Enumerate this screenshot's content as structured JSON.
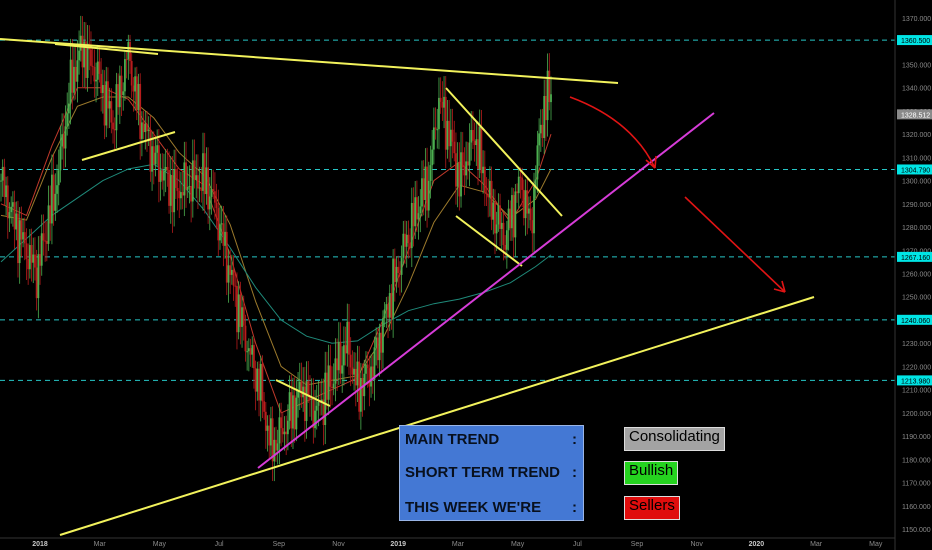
{
  "chart_data": {
    "type": "candlestick",
    "title": "",
    "ylim": [
      1150,
      1375
    ],
    "y_ticks": [
      "1150.000",
      "1160.000",
      "1170.000",
      "1180.000",
      "1190.000",
      "1200.000",
      "1210.000",
      "1220.000",
      "1230.000",
      "1240.000",
      "1250.000",
      "1260.000",
      "1270.000",
      "1280.000",
      "1290.000",
      "1300.000",
      "1310.000",
      "1320.000",
      "1330.000",
      "1340.000",
      "1350.000",
      "1360.000",
      "1370.000"
    ],
    "x_ticks": [
      "2018",
      "Mar",
      "May",
      "Jul",
      "Sep",
      "Nov",
      "2019",
      "Mar",
      "May",
      "Jul",
      "Sep",
      "Nov",
      "2020",
      "Mar",
      "May"
    ],
    "price_levels": [
      {
        "value": 1360.5,
        "label": "1360.500"
      },
      {
        "value": 1304.79,
        "label": "1304.790"
      },
      {
        "value": 1267.16,
        "label": "1267.160"
      },
      {
        "value": 1240.06,
        "label": "1240.060"
      },
      {
        "value": 1213.98,
        "label": "1213.980"
      }
    ],
    "last_price": {
      "value": 1328.512,
      "label": "1328.512"
    },
    "price_path": [
      [
        0,
        1300
      ],
      [
        3,
        1280
      ],
      [
        7,
        1260
      ],
      [
        11,
        1300
      ],
      [
        14,
        1345
      ],
      [
        16,
        1357
      ],
      [
        19,
        1345
      ],
      [
        22,
        1325
      ],
      [
        25,
        1355
      ],
      [
        27,
        1330
      ],
      [
        30,
        1310
      ],
      [
        34,
        1295
      ],
      [
        38,
        1300
      ],
      [
        40,
        1300
      ],
      [
        42,
        1290
      ],
      [
        45,
        1260
      ],
      [
        48,
        1232
      ],
      [
        51,
        1210
      ],
      [
        53,
        1185
      ],
      [
        56,
        1195
      ],
      [
        59,
        1210
      ],
      [
        62,
        1200
      ],
      [
        65,
        1215
      ],
      [
        68,
        1230
      ],
      [
        70,
        1210
      ],
      [
        73,
        1220
      ],
      [
        77,
        1255
      ],
      [
        79,
        1270
      ],
      [
        82,
        1290
      ],
      [
        84,
        1300
      ],
      [
        86,
        1335
      ],
      [
        88,
        1320
      ],
      [
        90,
        1300
      ],
      [
        93,
        1320
      ],
      [
        96,
        1290
      ],
      [
        99,
        1275
      ],
      [
        102,
        1300
      ],
      [
        104,
        1280
      ],
      [
        106,
        1325
      ],
      [
        108,
        1340
      ]
    ],
    "ema_fast": [
      [
        0,
        1290
      ],
      [
        5,
        1285
      ],
      [
        10,
        1315
      ],
      [
        15,
        1340
      ],
      [
        20,
        1340
      ],
      [
        25,
        1335
      ],
      [
        30,
        1320
      ],
      [
        35,
        1305
      ],
      [
        40,
        1298
      ],
      [
        45,
        1268
      ],
      [
        50,
        1230
      ],
      [
        55,
        1200
      ],
      [
        60,
        1205
      ],
      [
        65,
        1210
      ],
      [
        70,
        1215
      ],
      [
        75,
        1240
      ],
      [
        80,
        1270
      ],
      [
        85,
        1300
      ],
      [
        90,
        1308
      ],
      [
        95,
        1298
      ],
      [
        100,
        1282
      ],
      [
        105,
        1300
      ],
      [
        108,
        1320
      ]
    ],
    "ema_mid": [
      [
        0,
        1285
      ],
      [
        5,
        1283
      ],
      [
        10,
        1310
      ],
      [
        15,
        1332
      ],
      [
        20,
        1336
      ],
      [
        25,
        1336
      ],
      [
        30,
        1327
      ],
      [
        35,
        1312
      ],
      [
        40,
        1302
      ],
      [
        45,
        1281
      ],
      [
        50,
        1248
      ],
      [
        55,
        1220
      ],
      [
        60,
        1212
      ],
      [
        65,
        1214
      ],
      [
        70,
        1216
      ],
      [
        75,
        1232
      ],
      [
        80,
        1255
      ],
      [
        85,
        1282
      ],
      [
        90,
        1298
      ],
      [
        95,
        1295
      ],
      [
        100,
        1284
      ],
      [
        105,
        1292
      ],
      [
        108,
        1305
      ]
    ],
    "ema_slow": [
      [
        0,
        1265
      ],
      [
        10,
        1285
      ],
      [
        20,
        1300
      ],
      [
        25,
        1305
      ],
      [
        30,
        1307
      ],
      [
        35,
        1300
      ],
      [
        40,
        1287
      ],
      [
        45,
        1271
      ],
      [
        50,
        1254
      ],
      [
        55,
        1240
      ],
      [
        60,
        1233
      ],
      [
        65,
        1230
      ],
      [
        70,
        1231
      ],
      [
        75,
        1238
      ],
      [
        80,
        1244
      ],
      [
        85,
        1247
      ],
      [
        90,
        1249
      ],
      [
        95,
        1252
      ],
      [
        100,
        1256
      ],
      [
        105,
        1263
      ],
      [
        108,
        1268
      ]
    ],
    "annotations": {
      "main_trend_label": "MAIN TREND",
      "main_trend_colon": ":",
      "main_trend_value": "Consolidating",
      "short_term_label": "SHORT TERM TREND",
      "short_term_colon": ":",
      "short_term_value": "Bullish",
      "this_week_label": "THIS WEEK WE'RE",
      "this_week_colon": ":",
      "this_week_value": "Sellers"
    },
    "colors": {
      "background": "#000000",
      "up_candle": "#4caf50",
      "down_candle": "#b71c1c",
      "level_line": "#26c6c6",
      "trendline_yellow": "#f2f25c",
      "trendline_magenta": "#d63cd8",
      "arrow": "#e01414",
      "ema_fast": "#c0392b",
      "ema_mid": "#9c7a2c",
      "ema_slow": "#1f8a7a",
      "panel_bg": "#4478d4",
      "badge_consolidating": "#a3a3a3",
      "badge_bullish": "#25d31f",
      "badge_sellers": "#e00d0d",
      "last_price_bg": "#8a8a8a",
      "level_badge_bg": "#00e5e5"
    }
  }
}
